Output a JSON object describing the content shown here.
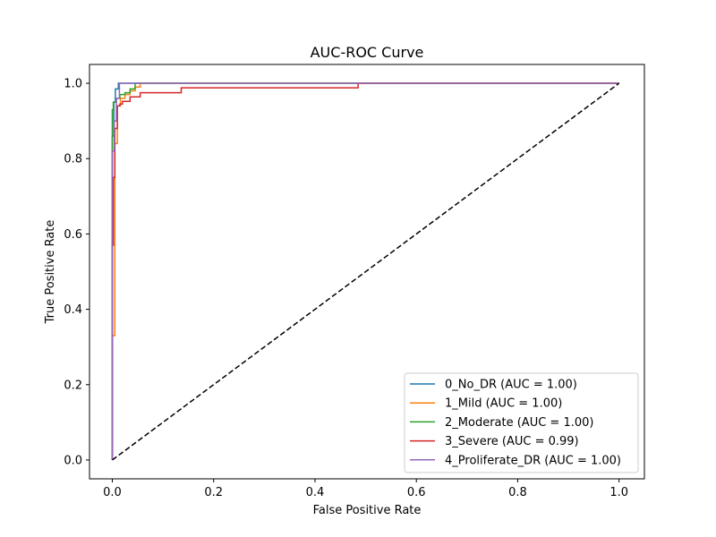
{
  "chart_data": {
    "type": "line",
    "title": "AUC-ROC Curve",
    "xlabel": "False Positive Rate",
    "ylabel": "True Positive Rate",
    "xlim": [
      -0.045,
      1.05
    ],
    "ylim": [
      -0.05,
      1.05
    ],
    "xticks": [
      0.0,
      0.2,
      0.4,
      0.6,
      0.8,
      1.0
    ],
    "yticks": [
      0.0,
      0.2,
      0.4,
      0.6,
      0.8,
      1.0
    ],
    "xtick_labels": [
      "0.0",
      "0.2",
      "0.4",
      "0.6",
      "0.8",
      "1.0"
    ],
    "ytick_labels": [
      "0.0",
      "0.2",
      "0.4",
      "0.6",
      "0.8",
      "1.0"
    ],
    "grid": false,
    "legend_position": "lower-right",
    "series": [
      {
        "name": "0_No_DR (AUC = 1.00)",
        "color": "#1f77b4",
        "x": [
          0.0,
          0.0,
          0.0,
          0.003,
          0.003,
          0.006,
          0.006,
          0.012,
          0.012,
          1.0
        ],
        "y": [
          0.0,
          0.8,
          0.86,
          0.86,
          0.95,
          0.95,
          0.985,
          0.985,
          1.0,
          1.0
        ]
      },
      {
        "name": "1_Mild (AUC = 1.00)",
        "color": "#ff7f0e",
        "x": [
          0.0,
          0.0,
          0.005,
          0.005,
          0.01,
          0.01,
          0.016,
          0.016,
          0.025,
          0.025,
          0.035,
          0.035,
          0.045,
          0.045,
          0.055,
          0.055,
          1.0
        ],
        "y": [
          0.0,
          0.33,
          0.33,
          0.84,
          0.84,
          0.94,
          0.94,
          0.96,
          0.96,
          0.97,
          0.97,
          0.98,
          0.98,
          0.99,
          0.99,
          1.0,
          1.0
        ]
      },
      {
        "name": "2_Moderate (AUC = 1.00)",
        "color": "#2ca02c",
        "x": [
          0.0,
          0.0,
          0.002,
          0.002,
          0.008,
          0.008,
          0.015,
          0.015,
          0.025,
          0.025,
          0.035,
          0.035,
          0.045,
          0.045,
          1.0
        ],
        "y": [
          0.0,
          0.93,
          0.93,
          0.95,
          0.95,
          0.96,
          0.96,
          0.97,
          0.97,
          0.975,
          0.975,
          0.985,
          0.985,
          1.0,
          1.0
        ]
      },
      {
        "name": "3_Severe (AUC = 0.99)",
        "color": "#d62728",
        "x": [
          0.0,
          0.0,
          0.002,
          0.002,
          0.005,
          0.005,
          0.01,
          0.01,
          0.015,
          0.015,
          0.02,
          0.02,
          0.035,
          0.035,
          0.055,
          0.055,
          0.136,
          0.136,
          0.485,
          0.485,
          1.0
        ],
        "y": [
          0.0,
          0.57,
          0.57,
          0.75,
          0.75,
          0.88,
          0.88,
          0.94,
          0.94,
          0.945,
          0.945,
          0.952,
          0.952,
          0.964,
          0.964,
          0.975,
          0.975,
          0.988,
          0.988,
          1.0,
          1.0
        ]
      },
      {
        "name": "4_Proliferate_DR (AUC = 1.00)",
        "color": "#9467bd",
        "x": [
          0.0,
          0.0,
          0.004,
          0.004,
          0.008,
          0.008,
          0.014,
          0.014,
          1.0
        ],
        "y": [
          0.0,
          0.82,
          0.82,
          0.9,
          0.9,
          0.96,
          0.96,
          1.0,
          1.0
        ]
      }
    ],
    "reference_line": {
      "style": "dashed",
      "color": "#000000",
      "x": [
        0.0,
        1.0
      ],
      "y": [
        0.0,
        1.0
      ]
    }
  }
}
